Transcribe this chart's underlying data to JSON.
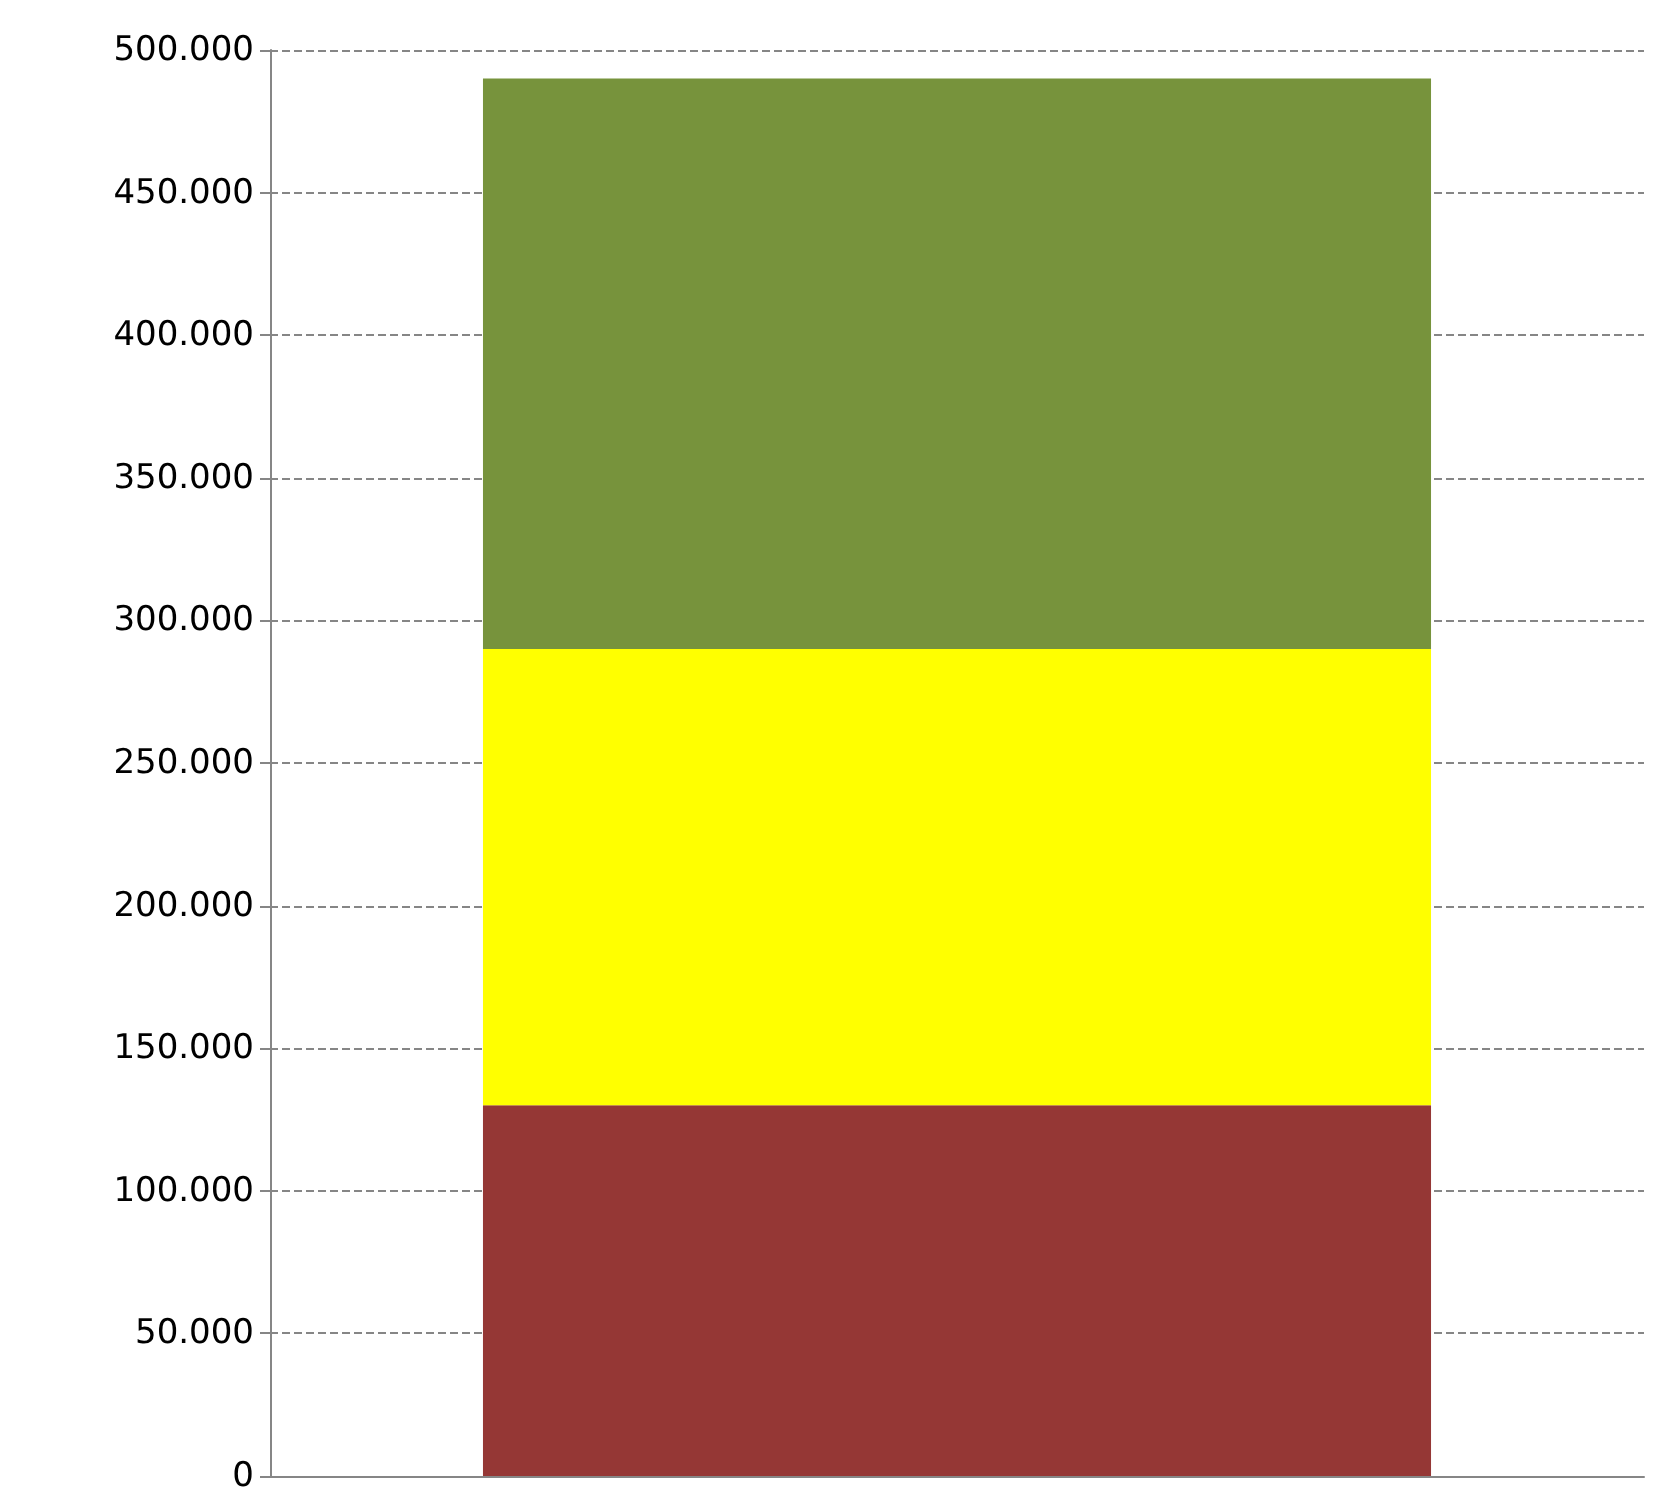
{
  "chart_data": {
    "type": "bar",
    "stacked": true,
    "categories": [
      null
    ],
    "series": [
      {
        "color": "#953735",
        "values": [
          130000
        ]
      },
      {
        "color": "#ffff00",
        "values": [
          160000
        ]
      },
      {
        "color": "#77933c",
        "values": [
          200000
        ]
      }
    ],
    "ylim": [
      0,
      500000
    ],
    "yticks": [
      {
        "value": 0,
        "label": "0"
      },
      {
        "value": 50000,
        "label": "50.000"
      },
      {
        "value": 100000,
        "label": "100.000"
      },
      {
        "value": 150000,
        "label": "150.000"
      },
      {
        "value": 200000,
        "label": "200.000"
      },
      {
        "value": 250000,
        "label": "250.000"
      },
      {
        "value": 300000,
        "label": "300.000"
      },
      {
        "value": 350000,
        "label": "350.000"
      },
      {
        "value": 400000,
        "label": "400.000"
      },
      {
        "value": 450000,
        "label": "450.000"
      },
      {
        "value": 500000,
        "label": "500.000"
      }
    ],
    "grid": "y"
  }
}
